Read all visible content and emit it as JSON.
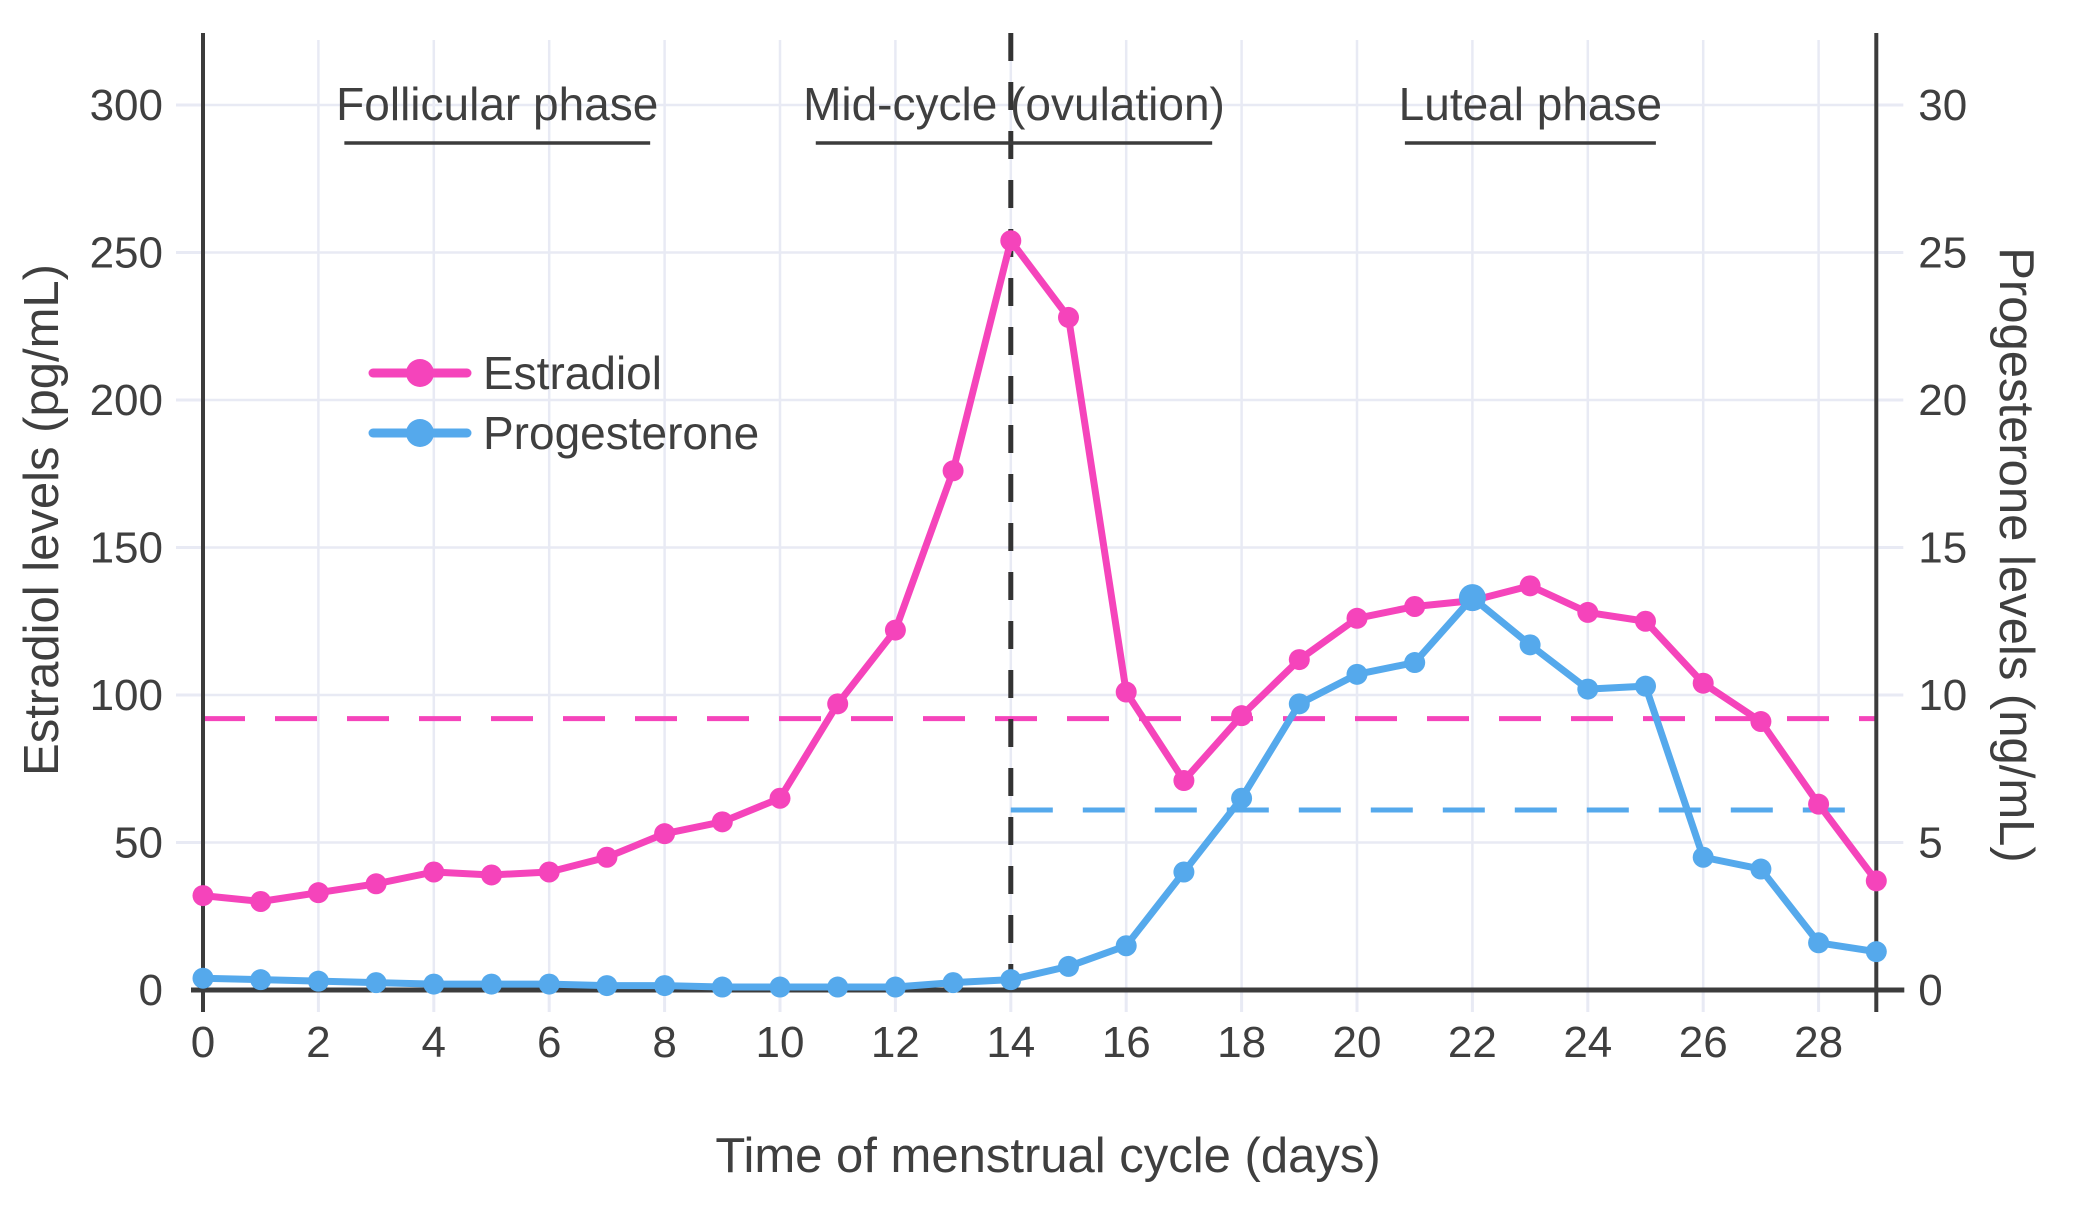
{
  "chart_data": {
    "type": "line",
    "x_days": [
      0,
      1,
      2,
      3,
      4,
      5,
      6,
      7,
      8,
      9,
      10,
      11,
      12,
      13,
      14,
      15,
      16,
      17,
      18,
      19,
      20,
      21,
      22,
      23,
      24,
      25,
      26,
      27,
      28,
      29
    ],
    "series": [
      {
        "name": "Estradiol",
        "axis": "left",
        "color": "#f544bb",
        "values": [
          32,
          30,
          33,
          36,
          40,
          39,
          40,
          45,
          53,
          57,
          65,
          97,
          122,
          176,
          254,
          228,
          101,
          71,
          93,
          112,
          126,
          130,
          132,
          137,
          128,
          125,
          104,
          91,
          63,
          37
        ]
      },
      {
        "name": "Progesterone",
        "axis": "right",
        "color": "#55a9ec",
        "values": [
          0.4,
          0.35,
          0.3,
          0.25,
          0.2,
          0.2,
          0.2,
          0.15,
          0.15,
          0.1,
          0.1,
          0.1,
          0.1,
          0.25,
          0.35,
          0.8,
          1.5,
          4.0,
          6.5,
          9.7,
          10.7,
          11.1,
          13.3,
          11.7,
          10.2,
          10.3,
          4.5,
          4.1,
          1.6,
          1.3
        ],
        "peak_day": 22
      }
    ],
    "left_axis": {
      "label": "Estradiol levels (pg/mL)",
      "ticks": [
        0,
        50,
        100,
        150,
        200,
        250,
        300
      ],
      "range": [
        0,
        322
      ]
    },
    "right_axis": {
      "label": "Progesterone levels (ng/mL)",
      "ticks": [
        0,
        5,
        10,
        15,
        20,
        25,
        30
      ],
      "range": [
        0,
        32.2
      ]
    },
    "x_axis": {
      "label": "Time of menstrual cycle (days)",
      "ticks": [
        0,
        2,
        4,
        6,
        8,
        10,
        12,
        14,
        16,
        18,
        20,
        22,
        24,
        26,
        28
      ],
      "range": [
        0,
        29
      ]
    },
    "grid": {
      "vertical_every_days": 2,
      "horizontal_every_left_units": 50,
      "color": "#e8eaf4"
    },
    "legend": {
      "items": [
        "Estradiol",
        "Progesterone"
      ],
      "position": "upper-left-inside"
    },
    "annotations": {
      "phases": [
        {
          "label": "Follicular phase",
          "underline_from_day": 2.45,
          "underline_to_day": 7.75
        },
        {
          "label": "Mid-cycle (ovulation)",
          "underline_from_day": 10.62,
          "underline_to_day": 17.49
        },
        {
          "label": "Luteal phase",
          "underline_from_day": 20.83,
          "underline_to_day": 25.18
        }
      ],
      "vertical_dashed_line_day": 14,
      "estradiol_reference_line": {
        "value_pg_ml": 92,
        "from_day": 0,
        "to_day": 29,
        "style": "dashed",
        "color": "#f544bb"
      },
      "progesterone_reference_line": {
        "value_ng_ml": 6.1,
        "from_day": 14,
        "to_day": 29,
        "style": "dashed",
        "color": "#55a9ec"
      }
    }
  },
  "colors": {
    "estradiol": "#f544bb",
    "progesterone": "#55a9ec",
    "vline": "#333333",
    "spine": "#3c3c3c",
    "grid": "#e8eaf4",
    "text": "#3f3f3f"
  }
}
